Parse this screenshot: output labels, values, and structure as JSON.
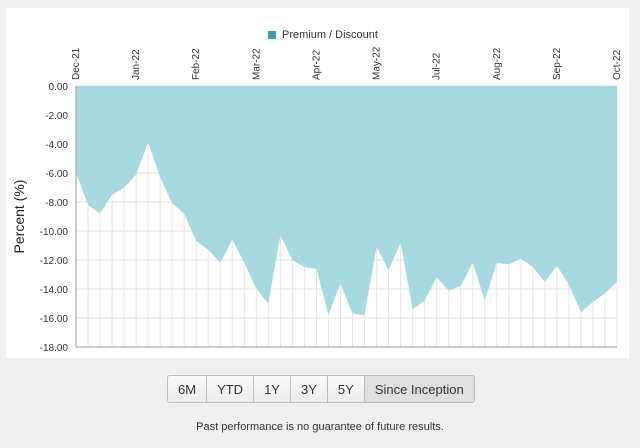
{
  "legend": {
    "label": "Premium / Discount",
    "color": "#3d9bb0"
  },
  "range_buttons": [
    {
      "label": "6M"
    },
    {
      "label": "YTD"
    },
    {
      "label": "1Y"
    },
    {
      "label": "3Y"
    },
    {
      "label": "5Y"
    },
    {
      "label": "Since Inception",
      "active": true
    }
  ],
  "disclaimer": "Past performance is no guarantee of future results.",
  "chart_data": {
    "type": "area",
    "title": "",
    "ylabel": "Percent (%)",
    "xlabel": "",
    "ylim": [
      -18,
      0
    ],
    "yticks": [
      "0.00",
      "-2.00",
      "-4.00",
      "-6.00",
      "-8.00",
      "-10.00",
      "-12.00",
      "-14.00",
      "-16.00",
      "-18.00"
    ],
    "ytick_values": [
      0,
      -2,
      -4,
      -6,
      -8,
      -10,
      -12,
      -14,
      -16,
      -18
    ],
    "x_tick_labels": [
      "Dec-21",
      "Jan-22",
      "Feb-22",
      "Mar-22",
      "Apr-22",
      "May-22",
      "Jul-22",
      "Aug-22",
      "Sep-22",
      "Oct-22"
    ],
    "fill_color": "#a9d9e0",
    "series": [
      {
        "name": "Premium / Discount",
        "values": [
          -6.0,
          -8.2,
          -8.8,
          -7.5,
          -7.0,
          -6.1,
          -3.9,
          -6.3,
          -8.1,
          -8.8,
          -10.7,
          -11.3,
          -12.2,
          -10.6,
          -12.2,
          -14.0,
          -15.0,
          -10.3,
          -12.0,
          -12.5,
          -12.6,
          -15.8,
          -13.6,
          -15.7,
          -15.8,
          -11.1,
          -12.7,
          -10.8,
          -15.4,
          -14.8,
          -13.2,
          -14.1,
          -13.8,
          -12.2,
          -14.8,
          -12.2,
          -12.3,
          -11.9,
          -12.5,
          -13.5,
          -12.4,
          -13.7,
          -15.6,
          -14.9,
          -14.3,
          -13.5
        ]
      }
    ]
  }
}
